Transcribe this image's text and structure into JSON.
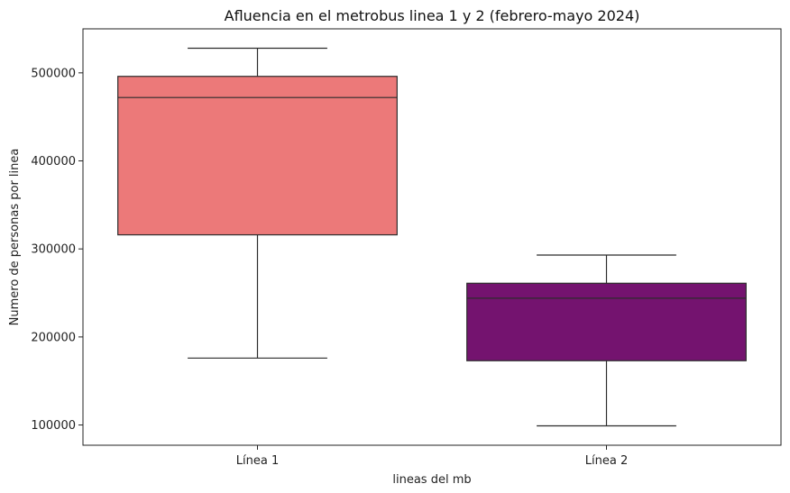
{
  "chart_data": {
    "type": "box",
    "title": "Afluencia en el metrobus linea 1 y 2 (febrero-mayo 2024)",
    "xlabel": "lineas del mb",
    "ylabel": "Numero de personas por linea",
    "categories": [
      "Línea 1",
      "Línea 2"
    ],
    "boxes": [
      {
        "category": "Línea 1",
        "min": 176000,
        "q1": 316000,
        "median": 472000,
        "q3": 496000,
        "max": 528000,
        "color": "#ec7979"
      },
      {
        "category": "Línea 2",
        "min": 99000,
        "q1": 173000,
        "median": 244000,
        "q3": 261000,
        "max": 293000,
        "color": "#74136f"
      }
    ],
    "ylim": [
      77000,
      550000
    ],
    "yticks": [
      100000,
      200000,
      300000,
      400000,
      500000
    ],
    "ytick_labels": [
      "100000",
      "200000",
      "300000",
      "400000",
      "500000"
    ],
    "grid": false,
    "legend": "none"
  }
}
